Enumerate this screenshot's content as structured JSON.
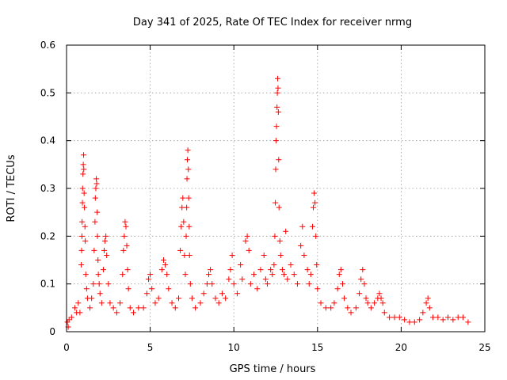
{
  "chart_data": {
    "type": "scatter",
    "title": "Day 341 of 2025, Rate Of TEC Index for receiver nrmg",
    "xlabel": "GPS time / hours",
    "ylabel": "ROTI / TECUs",
    "xlim": [
      0,
      25
    ],
    "ylim": [
      0,
      0.6
    ],
    "xticks": [
      "0",
      "5",
      "10",
      "15",
      "20",
      "25"
    ],
    "yticks": [
      "0",
      "0.1",
      "0.2",
      "0.3",
      "0.4",
      "0.5",
      "0.6"
    ],
    "grid": true,
    "marker": "plus",
    "color": "#ff0000",
    "series": [
      {
        "points": [
          [
            0.05,
            0.02
          ],
          [
            0.1,
            0.01
          ],
          [
            0.15,
            0.025
          ],
          [
            0.3,
            0.03
          ],
          [
            0.5,
            0.05
          ],
          [
            0.6,
            0.04
          ],
          [
            0.7,
            0.06
          ],
          [
            0.8,
            0.04
          ],
          [
            0.88,
            0.14
          ],
          [
            0.9,
            0.17
          ],
          [
            0.92,
            0.2
          ],
          [
            0.93,
            0.23
          ],
          [
            0.95,
            0.27
          ],
          [
            0.96,
            0.3
          ],
          [
            0.98,
            0.33
          ],
          [
            1.0,
            0.35
          ],
          [
            1.02,
            0.37
          ],
          [
            1.03,
            0.34
          ],
          [
            1.05,
            0.29
          ],
          [
            1.07,
            0.26
          ],
          [
            1.1,
            0.22
          ],
          [
            1.12,
            0.19
          ],
          [
            1.15,
            0.12
          ],
          [
            1.2,
            0.09
          ],
          [
            1.25,
            0.07
          ],
          [
            1.4,
            0.05
          ],
          [
            1.5,
            0.07
          ],
          [
            1.6,
            0.1
          ],
          [
            1.65,
            0.17
          ],
          [
            1.7,
            0.23
          ],
          [
            1.72,
            0.28
          ],
          [
            1.75,
            0.3
          ],
          [
            1.78,
            0.32
          ],
          [
            1.8,
            0.31
          ],
          [
            1.83,
            0.25
          ],
          [
            1.85,
            0.2
          ],
          [
            1.88,
            0.15
          ],
          [
            1.9,
            0.12
          ],
          [
            1.95,
            0.1
          ],
          [
            2.0,
            0.08
          ],
          [
            2.1,
            0.06
          ],
          [
            2.2,
            0.13
          ],
          [
            2.25,
            0.17
          ],
          [
            2.3,
            0.19
          ],
          [
            2.35,
            0.2
          ],
          [
            2.4,
            0.16
          ],
          [
            2.5,
            0.1
          ],
          [
            2.6,
            0.06
          ],
          [
            2.8,
            0.05
          ],
          [
            3.0,
            0.04
          ],
          [
            3.2,
            0.06
          ],
          [
            3.35,
            0.12
          ],
          [
            3.4,
            0.17
          ],
          [
            3.45,
            0.2
          ],
          [
            3.5,
            0.23
          ],
          [
            3.55,
            0.22
          ],
          [
            3.6,
            0.18
          ],
          [
            3.65,
            0.13
          ],
          [
            3.7,
            0.09
          ],
          [
            3.8,
            0.05
          ],
          [
            4.0,
            0.04
          ],
          [
            4.3,
            0.05
          ],
          [
            4.6,
            0.05
          ],
          [
            4.8,
            0.08
          ],
          [
            4.9,
            0.11
          ],
          [
            5.0,
            0.12
          ],
          [
            5.1,
            0.09
          ],
          [
            5.3,
            0.06
          ],
          [
            5.5,
            0.07
          ],
          [
            5.7,
            0.13
          ],
          [
            5.8,
            0.15
          ],
          [
            5.9,
            0.14
          ],
          [
            6.0,
            0.12
          ],
          [
            6.1,
            0.09
          ],
          [
            6.3,
            0.06
          ],
          [
            6.5,
            0.05
          ],
          [
            6.7,
            0.07
          ],
          [
            6.8,
            0.17
          ],
          [
            6.85,
            0.22
          ],
          [
            6.9,
            0.26
          ],
          [
            6.95,
            0.28
          ],
          [
            7.0,
            0.23
          ],
          [
            7.05,
            0.16
          ],
          [
            7.1,
            0.12
          ],
          [
            7.15,
            0.2
          ],
          [
            7.18,
            0.26
          ],
          [
            7.2,
            0.32
          ],
          [
            7.22,
            0.36
          ],
          [
            7.25,
            0.38
          ],
          [
            7.28,
            0.34
          ],
          [
            7.3,
            0.28
          ],
          [
            7.33,
            0.22
          ],
          [
            7.35,
            0.16
          ],
          [
            7.4,
            0.1
          ],
          [
            7.5,
            0.07
          ],
          [
            7.7,
            0.05
          ],
          [
            8.0,
            0.06
          ],
          [
            8.2,
            0.08
          ],
          [
            8.4,
            0.1
          ],
          [
            8.5,
            0.12
          ],
          [
            8.6,
            0.13
          ],
          [
            8.7,
            0.1
          ],
          [
            8.9,
            0.07
          ],
          [
            9.1,
            0.06
          ],
          [
            9.3,
            0.08
          ],
          [
            9.5,
            0.07
          ],
          [
            9.7,
            0.11
          ],
          [
            9.8,
            0.13
          ],
          [
            9.9,
            0.16
          ],
          [
            10.0,
            0.1
          ],
          [
            10.2,
            0.08
          ],
          [
            10.4,
            0.14
          ],
          [
            10.5,
            0.11
          ],
          [
            10.7,
            0.19
          ],
          [
            10.8,
            0.2
          ],
          [
            10.9,
            0.17
          ],
          [
            11.0,
            0.1
          ],
          [
            11.2,
            0.12
          ],
          [
            11.4,
            0.09
          ],
          [
            11.6,
            0.13
          ],
          [
            11.8,
            0.16
          ],
          [
            11.9,
            0.11
          ],
          [
            12.0,
            0.1
          ],
          [
            12.2,
            0.13
          ],
          [
            12.3,
            0.12
          ],
          [
            12.4,
            0.14
          ],
          [
            12.45,
            0.2
          ],
          [
            12.48,
            0.27
          ],
          [
            12.5,
            0.34
          ],
          [
            12.52,
            0.4
          ],
          [
            12.55,
            0.43
          ],
          [
            12.58,
            0.47
          ],
          [
            12.6,
            0.5
          ],
          [
            12.62,
            0.53
          ],
          [
            12.64,
            0.51
          ],
          [
            12.66,
            0.46
          ],
          [
            12.68,
            0.36
          ],
          [
            12.7,
            0.26
          ],
          [
            12.75,
            0.19
          ],
          [
            12.8,
            0.16
          ],
          [
            12.9,
            0.13
          ],
          [
            13.0,
            0.12
          ],
          [
            13.1,
            0.21
          ],
          [
            13.2,
            0.11
          ],
          [
            13.4,
            0.14
          ],
          [
            13.6,
            0.12
          ],
          [
            13.8,
            0.1
          ],
          [
            14.0,
            0.18
          ],
          [
            14.1,
            0.22
          ],
          [
            14.2,
            0.16
          ],
          [
            14.4,
            0.13
          ],
          [
            14.5,
            0.1
          ],
          [
            14.6,
            0.12
          ],
          [
            14.7,
            0.22
          ],
          [
            14.75,
            0.26
          ],
          [
            14.8,
            0.29
          ],
          [
            14.85,
            0.27
          ],
          [
            14.9,
            0.2
          ],
          [
            14.95,
            0.14
          ],
          [
            15.0,
            0.09
          ],
          [
            15.2,
            0.06
          ],
          [
            15.5,
            0.05
          ],
          [
            15.8,
            0.05
          ],
          [
            16.0,
            0.06
          ],
          [
            16.2,
            0.09
          ],
          [
            16.3,
            0.12
          ],
          [
            16.4,
            0.13
          ],
          [
            16.5,
            0.1
          ],
          [
            16.6,
            0.07
          ],
          [
            16.8,
            0.05
          ],
          [
            17.0,
            0.04
          ],
          [
            17.3,
            0.05
          ],
          [
            17.5,
            0.08
          ],
          [
            17.6,
            0.11
          ],
          [
            17.7,
            0.13
          ],
          [
            17.8,
            0.1
          ],
          [
            17.9,
            0.07
          ],
          [
            18.0,
            0.06
          ],
          [
            18.2,
            0.05
          ],
          [
            18.4,
            0.06
          ],
          [
            18.6,
            0.07
          ],
          [
            18.7,
            0.08
          ],
          [
            18.8,
            0.07
          ],
          [
            18.9,
            0.06
          ],
          [
            19.0,
            0.04
          ],
          [
            19.3,
            0.03
          ],
          [
            19.6,
            0.03
          ],
          [
            19.9,
            0.03
          ],
          [
            20.2,
            0.025
          ],
          [
            20.5,
            0.02
          ],
          [
            20.8,
            0.02
          ],
          [
            21.1,
            0.025
          ],
          [
            21.3,
            0.04
          ],
          [
            21.5,
            0.06
          ],
          [
            21.6,
            0.07
          ],
          [
            21.7,
            0.05
          ],
          [
            21.9,
            0.03
          ],
          [
            22.2,
            0.03
          ],
          [
            22.5,
            0.025
          ],
          [
            22.8,
            0.03
          ],
          [
            23.1,
            0.025
          ],
          [
            23.4,
            0.03
          ],
          [
            23.7,
            0.03
          ],
          [
            24.0,
            0.02
          ]
        ]
      }
    ]
  }
}
